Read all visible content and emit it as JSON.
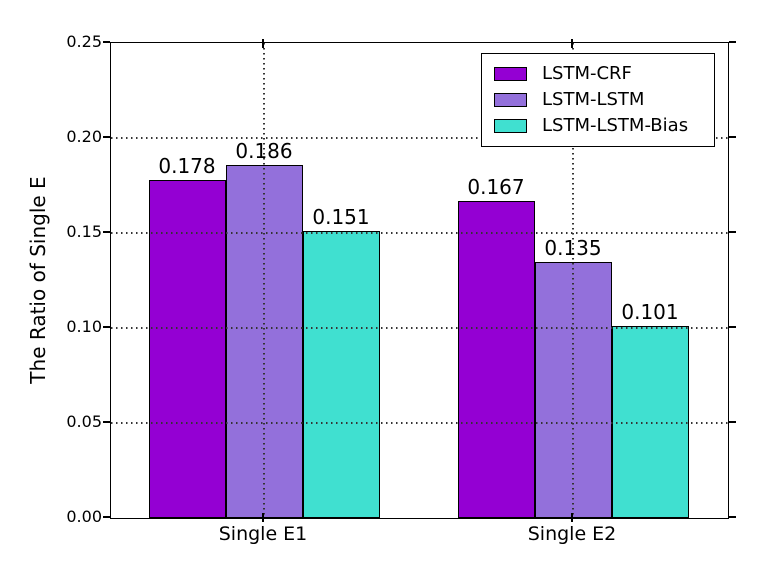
{
  "chart_data": {
    "type": "bar",
    "title": "",
    "categories": [
      "Single E1",
      "Single E2"
    ],
    "series": [
      {
        "name": "LSTM-CRF",
        "color": "#9400d3",
        "values": [
          0.178,
          0.167
        ]
      },
      {
        "name": "LSTM-LSTM",
        "color": "#9370db",
        "values": [
          0.186,
          0.135
        ]
      },
      {
        "name": "LSTM-LSTM-Bias",
        "color": "#40e0d0",
        "values": [
          0.151,
          0.101
        ]
      }
    ],
    "bar_value_labels": [
      [
        "0.178",
        "0.186",
        "0.151"
      ],
      [
        "0.167",
        "0.135",
        "0.101"
      ]
    ],
    "bar_edge_color": "#000000",
    "xlabel": "",
    "ylabel": "The Ratio of Single E",
    "ylim": [
      0,
      0.25
    ],
    "yticks": [
      0,
      0.05,
      0.1,
      0.15,
      0.2,
      0.25
    ],
    "ytick_labels": [
      "0.00",
      "0.05",
      "0.10",
      "0.15",
      "0.20",
      "0.25"
    ],
    "grid": true,
    "grid_linestyle": "dotted",
    "legend_position": "upper right",
    "background": "#ffffff"
  }
}
